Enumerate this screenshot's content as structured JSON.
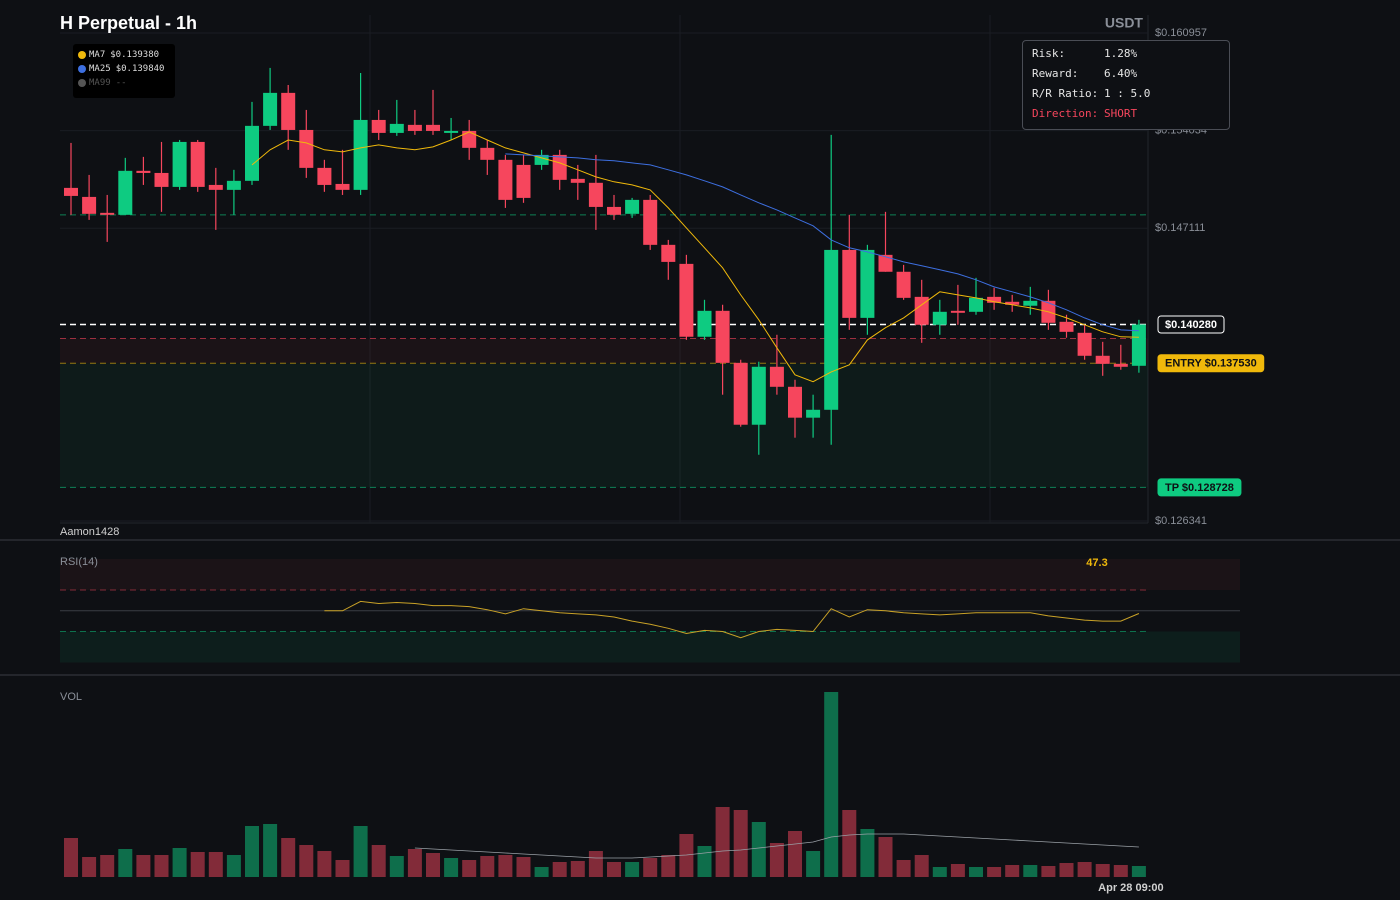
{
  "header": {
    "title": "H Perpetual - 1h",
    "unit": "USDT",
    "watermark": "Aamon1428"
  },
  "info_panel": {
    "rows": [
      [
        "Risk:",
        "1.28%"
      ],
      [
        "Reward:",
        "6.40%"
      ],
      [
        "R/R Ratio:",
        "1 : 5.0"
      ],
      [
        "Direction:",
        "SHORT"
      ]
    ]
  },
  "chart_data": [
    {
      "type": "candlestick",
      "categories": [
        null,
        null,
        null,
        null,
        null,
        null,
        null,
        null,
        null,
        null,
        null,
        null,
        null,
        null,
        null,
        null,
        null,
        null,
        null,
        null,
        null,
        null,
        null,
        null,
        null,
        null,
        null,
        null,
        null,
        null,
        null,
        null,
        null,
        null,
        null,
        null,
        null,
        null,
        null,
        null,
        null,
        null,
        null,
        null,
        null,
        null,
        null,
        null,
        null,
        null,
        null,
        null,
        null,
        null,
        null,
        null,
        null,
        null,
        null,
        "Apr 28 09:00"
      ],
      "ohlc": [
        [
          0.14997,
          0.15316,
          0.14806,
          0.1494
        ],
        [
          0.14933,
          0.15089,
          0.1477,
          0.14813
        ],
        [
          0.1482,
          0.14947,
          0.14614,
          0.14806
        ],
        [
          0.14806,
          0.1521,
          0.14806,
          0.15118
        ],
        [
          0.15118,
          0.15217,
          0.15018,
          0.15103
        ],
        [
          0.15103,
          0.15323,
          0.14827,
          0.15004
        ],
        [
          0.15004,
          0.15337,
          0.14983,
          0.15323
        ],
        [
          0.15323,
          0.15337,
          0.14969,
          0.15004
        ],
        [
          0.15018,
          0.15139,
          0.14699,
          0.14983
        ],
        [
          0.14983,
          0.15125,
          0.14806,
          0.15047
        ],
        [
          0.15047,
          0.15607,
          0.15018,
          0.15437
        ],
        [
          0.15437,
          0.15848,
          0.15408,
          0.15671
        ],
        [
          0.15671,
          0.15727,
          0.15267,
          0.15408
        ],
        [
          0.15408,
          0.1555,
          0.15068,
          0.15139
        ],
        [
          0.15139,
          0.15196,
          0.14969,
          0.15018
        ],
        [
          0.15025,
          0.15267,
          0.14947,
          0.14983
        ],
        [
          0.14983,
          0.15812,
          0.14947,
          0.15479
        ],
        [
          0.15479,
          0.1555,
          0.15337,
          0.15387
        ],
        [
          0.15387,
          0.15621,
          0.15366,
          0.15451
        ],
        [
          0.15444,
          0.1555,
          0.15373,
          0.15401
        ],
        [
          0.15444,
          0.15692,
          0.15373,
          0.15401
        ],
        [
          0.15387,
          0.15493,
          0.15337,
          0.15401
        ],
        [
          0.15401,
          0.15479,
          0.15196,
          0.15281
        ],
        [
          0.15281,
          0.15337,
          0.15089,
          0.15196
        ],
        [
          0.15196,
          0.15231,
          0.14855,
          0.14912
        ],
        [
          0.1516,
          0.15231,
          0.14891,
          0.14926
        ],
        [
          0.1516,
          0.15267,
          0.15125,
          0.15231
        ],
        [
          0.15231,
          0.15267,
          0.14983,
          0.15054
        ],
        [
          0.15061,
          0.1516,
          0.14912,
          0.15033
        ],
        [
          0.15033,
          0.15231,
          0.14699,
          0.14862
        ],
        [
          0.14862,
          0.14947,
          0.1477,
          0.14806
        ],
        [
          0.14813,
          0.14926,
          0.14784,
          0.14912
        ],
        [
          0.14912,
          0.14947,
          0.14557,
          0.14593
        ],
        [
          0.14593,
          0.14628,
          0.14345,
          0.14472
        ],
        [
          0.14458,
          0.14522,
          0.13919,
          0.13941
        ],
        [
          0.13941,
          0.14203,
          0.13919,
          0.14125
        ],
        [
          0.14125,
          0.14168,
          0.1353,
          0.13756
        ],
        [
          0.13756,
          0.13778,
          0.13303,
          0.13317
        ],
        [
          0.13317,
          0.13764,
          0.13104,
          0.13728
        ],
        [
          0.13728,
          0.13955,
          0.1353,
          0.13586
        ],
        [
          0.13586,
          0.13636,
          0.13225,
          0.13367
        ],
        [
          0.13367,
          0.1353,
          0.13225,
          0.13423
        ],
        [
          0.13423,
          0.15373,
          0.13175,
          0.14557
        ],
        [
          0.14557,
          0.14806,
          0.1399,
          0.14075
        ],
        [
          0.14075,
          0.14593,
          0.13955,
          0.14557
        ],
        [
          0.14522,
          0.14827,
          0.14402,
          0.14402
        ],
        [
          0.14402,
          0.14451,
          0.14203,
          0.14217
        ],
        [
          0.14224,
          0.14345,
          0.13898,
          0.14026
        ],
        [
          0.14026,
          0.14203,
          0.13955,
          0.14118
        ],
        [
          0.14125,
          0.14309,
          0.14026,
          0.14111
        ],
        [
          0.14118,
          0.14359,
          0.14097,
          0.14217
        ],
        [
          0.14224,
          0.14288,
          0.14132,
          0.14182
        ],
        [
          0.14189,
          0.14238,
          0.14118,
          0.14168
        ],
        [
          0.14161,
          0.14295,
          0.14097,
          0.14196
        ],
        [
          0.14196,
          0.14274,
          0.1399,
          0.1404
        ],
        [
          0.14047,
          0.14097,
          0.13934,
          0.13976
        ],
        [
          0.13969,
          0.14026,
          0.13778,
          0.13806
        ],
        [
          0.13806,
          0.13905,
          0.13664,
          0.13749
        ],
        [
          0.13749,
          0.13884,
          0.13707,
          0.13728
        ],
        [
          0.13735,
          0.14061,
          0.13686,
          0.14028
        ]
      ],
      "up_color": "#0ecb81",
      "down_color": "#f6465d",
      "ylim": [
        0.126341,
        0.160957
      ],
      "yticks": [
        {
          "value": 0.126341,
          "label": "$0.126341"
        },
        {
          "value": 0.147111,
          "label": "$0.147111"
        },
        {
          "value": 0.154034,
          "label": "$0.154034"
        },
        {
          "value": 0.160957,
          "label": "$0.160957"
        }
      ],
      "series": [
        {
          "name": "MA7",
          "color": "#f0b90b",
          "value_label": "$0.139380",
          "values": [
            null,
            null,
            null,
            null,
            null,
            null,
            null,
            null,
            null,
            null,
            0.1516,
            0.15267,
            0.15337,
            0.15316,
            0.15267,
            0.15252,
            0.15281,
            0.15302,
            0.15281,
            0.15267,
            0.15288,
            0.15337,
            0.15394,
            0.15337,
            0.15281,
            0.15245,
            0.1521,
            0.15174,
            0.15125,
            0.15075,
            0.1504,
            0.15018,
            0.14983,
            0.14855,
            0.14713,
            0.14572,
            0.1443,
            0.14238,
            0.14061,
            0.13863,
            0.13671,
            0.13622,
            0.13692,
            0.13742,
            0.13919,
            0.14005,
            0.14075,
            0.14168,
            0.1426,
            0.14238,
            0.14217,
            0.14189,
            0.14168,
            0.14146,
            0.14118,
            0.14075,
            0.14026,
            0.13976,
            0.13941,
            0.13938
          ]
        },
        {
          "name": "MA25",
          "color": "#3d6fe0",
          "value_label": "$0.139840",
          "values": [
            null,
            null,
            null,
            null,
            null,
            null,
            null,
            null,
            null,
            null,
            null,
            null,
            null,
            null,
            null,
            null,
            null,
            null,
            null,
            null,
            null,
            null,
            null,
            null,
            0.15238,
            0.15231,
            0.15224,
            0.15217,
            0.1521,
            0.15196,
            0.15189,
            0.15174,
            0.1516,
            0.15125,
            0.15089,
            0.15047,
            0.15004,
            0.14947,
            0.14891,
            0.14841,
            0.14784,
            0.14728,
            0.14628,
            0.14572,
            0.14543,
            0.14508,
            0.14472,
            0.14444,
            0.14416,
            0.14387,
            0.14345,
            0.14295,
            0.1426,
            0.14224,
            0.14182,
            0.14132,
            0.14075,
            0.14026,
            0.1399,
            0.13984
          ]
        },
        {
          "name": "MA99",
          "color": "#555555",
          "value_label": "--"
        }
      ],
      "levels": [
        {
          "label": "$0.140280",
          "value": 0.14028,
          "color": "#ffffff"
        },
        {
          "value": 0.13929,
          "color": "#f6465d"
        },
        {
          "label": "ENTRY $0.137530",
          "value": 0.13753,
          "color": "#f0b90b"
        },
        {
          "label": "TP $0.128728",
          "value": 0.128728,
          "color": "#0ecb81"
        },
        {
          "value": 0.14806,
          "color": "#0ecb81"
        }
      ],
      "zones": [
        {
          "from": 0.13753,
          "to": 0.13929,
          "color": "#f6465d"
        },
        {
          "from": 0.128728,
          "to": 0.13753,
          "color": "#0ecb81"
        }
      ]
    },
    {
      "type": "line",
      "title": "RSI(14)",
      "value_label": "47.3",
      "color": "#c9a227",
      "ylim": [
        0,
        100
      ],
      "levels": [
        70,
        50,
        30
      ],
      "values": [
        null,
        null,
        null,
        null,
        null,
        null,
        null,
        null,
        null,
        null,
        null,
        null,
        null,
        null,
        50,
        50,
        59,
        57,
        58,
        57,
        55,
        55,
        54,
        51,
        47,
        52,
        50,
        48,
        47,
        46,
        44,
        40,
        37,
        33,
        28,
        31,
        30,
        24,
        30,
        32,
        31,
        30,
        52,
        44,
        51,
        50,
        48,
        47,
        46,
        47,
        48,
        48,
        48,
        48,
        45,
        43,
        41,
        40,
        40,
        47.3
      ]
    },
    {
      "type": "bar",
      "title": "VOL",
      "ylim": [
        0,
        185
      ],
      "up_color": "#0ecb81",
      "down_color": "#f6465d",
      "ma_color": "#9aa0a6",
      "values": [
        39,
        20,
        22,
        28,
        22,
        22,
        29,
        25,
        25,
        22,
        51,
        53,
        39,
        32,
        26,
        17,
        51,
        32,
        21,
        28,
        24,
        19,
        17,
        21,
        22,
        20,
        10,
        15,
        16,
        26,
        15,
        15,
        19,
        22,
        43,
        31,
        70,
        67,
        55,
        34,
        46,
        26,
        185,
        67,
        48,
        40,
        17,
        22,
        10,
        13,
        10,
        10,
        12,
        12,
        11,
        14,
        15,
        13,
        12,
        11
      ],
      "ma_values": [
        null,
        null,
        null,
        null,
        null,
        null,
        null,
        null,
        null,
        null,
        null,
        null,
        null,
        null,
        null,
        null,
        null,
        null,
        null,
        29,
        28,
        27,
        26,
        25,
        24,
        23,
        22,
        21,
        20,
        19,
        19,
        19,
        20,
        21,
        22,
        24,
        26,
        27,
        29,
        31,
        33,
        35,
        40,
        42,
        43,
        43,
        43,
        42,
        41,
        40,
        39,
        38,
        37,
        36,
        35,
        34,
        33,
        32,
        31,
        30
      ]
    }
  ]
}
